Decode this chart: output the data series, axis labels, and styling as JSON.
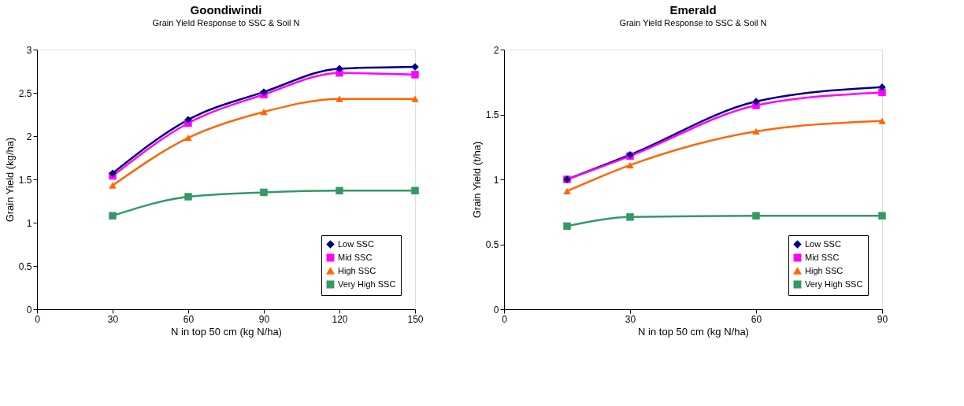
{
  "chart_data": [
    {
      "type": "line",
      "title": "Goondiwindi",
      "subtitle": "Grain Yield Response to SSC & Soil N",
      "xlabel": "N in top 50 cm (kg N/ha)",
      "ylabel": "Grain Yield (kg/ha)",
      "x": [
        30,
        60,
        90,
        120,
        150
      ],
      "xlim": [
        0,
        150
      ],
      "xticks": [
        0,
        30,
        60,
        90,
        120,
        150
      ],
      "ylim": [
        0,
        3
      ],
      "yticks": [
        0,
        0.5,
        1,
        1.5,
        2,
        2.5,
        3
      ],
      "grid": false,
      "legend": "bottom right",
      "line_style": "solid",
      "series": [
        {
          "name": "Low SSC",
          "color": "#000080",
          "marker": "diamond",
          "values": [
            1.57,
            2.19,
            2.51,
            2.78,
            2.8
          ]
        },
        {
          "name": "Mid SSC",
          "color": "#ff00ff",
          "marker": "square",
          "values": [
            1.54,
            2.15,
            2.48,
            2.73,
            2.71
          ]
        },
        {
          "name": "High SSC",
          "color": "#ff6600",
          "marker": "triangle",
          "values": [
            1.43,
            1.98,
            2.28,
            2.43,
            2.43
          ]
        },
        {
          "name": "Very High SSC",
          "color": "#339966",
          "marker": "square",
          "values": [
            1.08,
            1.3,
            1.35,
            1.37,
            1.37
          ]
        }
      ]
    },
    {
      "type": "line",
      "title": "Emerald",
      "subtitle": "Grain Yield Response to SSC & Soil N",
      "xlabel": "N in top 50 cm (kg N/ha)",
      "ylabel": "Grain Yield (t/ha)",
      "x": [
        15,
        30,
        60,
        90
      ],
      "xlim": [
        0,
        90
      ],
      "xticks": [
        0,
        30,
        60,
        90
      ],
      "ylim": [
        0,
        2
      ],
      "yticks": [
        0,
        0.5,
        1,
        1.5,
        2
      ],
      "grid": false,
      "legend": "bottom right",
      "line_style": "solid",
      "series": [
        {
          "name": "Low SSC",
          "color": "#000080",
          "marker": "diamond",
          "values": [
            1.0,
            1.19,
            1.6,
            1.71
          ]
        },
        {
          "name": "Mid SSC",
          "color": "#ff00ff",
          "marker": "square",
          "values": [
            1.0,
            1.18,
            1.57,
            1.67
          ]
        },
        {
          "name": "High SSC",
          "color": "#ff6600",
          "marker": "triangle",
          "values": [
            0.91,
            1.11,
            1.37,
            1.45
          ]
        },
        {
          "name": "Very High SSC",
          "color": "#339966",
          "marker": "square",
          "values": [
            0.64,
            0.71,
            0.72,
            0.72
          ]
        }
      ]
    }
  ]
}
